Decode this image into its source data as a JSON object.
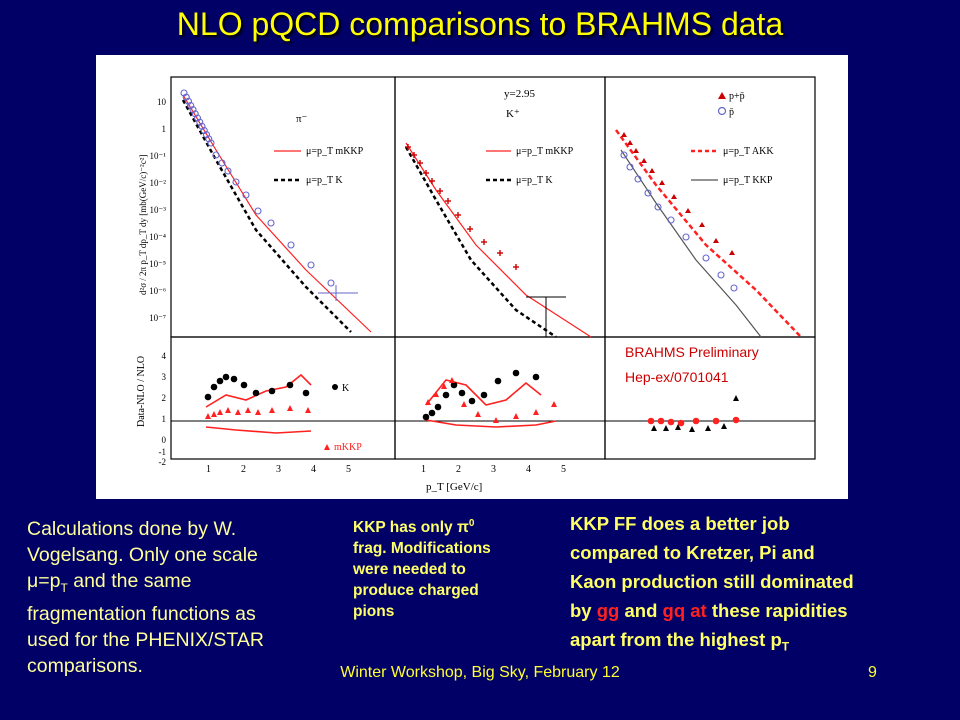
{
  "title": "NLO pQCD comparisons to BRAHMS data",
  "figure": {
    "panel1_particle": "π⁻",
    "panel2_rapidity": "y=2.95",
    "panel2_particle": "K⁺",
    "panel3_legend_p_pbar": "p+p̄",
    "panel3_legend_pbar": "p̄",
    "legend_mkkp": "μ=p_T mKKP",
    "legend_k": "μ=p_T K",
    "legend_akk": "μ=p_T AKK",
    "legend_kkp": "μ=p_T KKP",
    "y_label_top": "d²σ / 2π p_T dp_T dy [mb(GeV/c)⁻²c²]",
    "y_label_bottom": "Data-NLO / NLO",
    "x_label": "p_T [GeV/c]",
    "ratio_label_k": "K",
    "ratio_label_mkkp": "mKKP",
    "y_ticks_top": [
      "10",
      "1",
      "10⁻¹",
      "10⁻²",
      "10⁻³",
      "10⁻⁴",
      "10⁻⁵",
      "10⁻⁶",
      "10⁻⁷"
    ],
    "y_ticks_bottom": [
      "4",
      "3",
      "2",
      "1",
      "0",
      "-1",
      "-2"
    ],
    "x_ticks": [
      "1",
      "2",
      "3",
      "4",
      "5"
    ],
    "preliminary_1": "BRAHMS Preliminary",
    "preliminary_2": "Hep-ex/0701041",
    "colors": {
      "red": "#ff2020",
      "black": "#000000",
      "blue": "#6666cc",
      "brahms": "#cc0000"
    }
  },
  "text_left": {
    "l1": "Calculations done by W.",
    "l2": "Vogelsang. Only one scale",
    "l3_mu": "μ",
    "l3_eq": "=p",
    "l3_sub": "T",
    "l3_rest": " and the same",
    "l4": "fragmentation functions as",
    "l5": "used for the PHENIX/STAR",
    "l6": "comparisons."
  },
  "text_mid": {
    "l1_pre": "KKP has only ",
    "l1_pi": "π",
    "l1_sup": "0",
    "l2": "frag. Modifications",
    "l3": "were needed to",
    "l4": "produce charged",
    "l5": "pions"
  },
  "text_right": {
    "l1": "KKP FF does a better job",
    "l2": "compared to Kretzer, Pi and",
    "l3": "Kaon production  still dominated",
    "l4_pre": "by ",
    "l4_gg": "gg",
    "l4_and": " and ",
    "l4_gq": "gq at",
    "l4_post": " these rapidities",
    "l5_pre": "apart from the highest p",
    "l5_sub": "T"
  },
  "footer": "Winter Workshop, Big Sky, February 12",
  "page_number": "9"
}
